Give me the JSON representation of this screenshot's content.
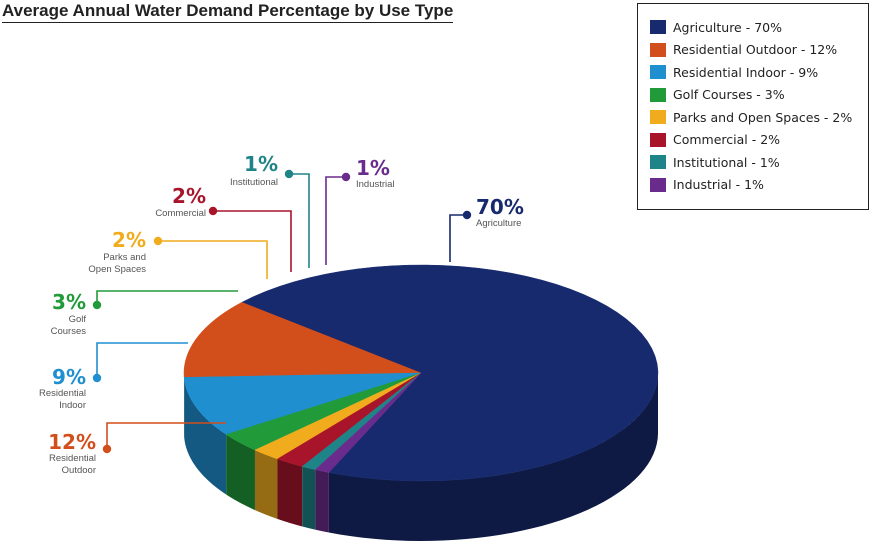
{
  "chart_data": {
    "type": "pie",
    "title": "Average Annual Water Demand Percentage by Use Type",
    "slices": [
      {
        "name": "Agriculture",
        "value": 70,
        "pct_label": "70%",
        "label_lines": [
          "Agriculture"
        ],
        "legend": "Agriculture - 70%",
        "color": "#172a6e"
      },
      {
        "name": "Residential Outdoor",
        "value": 12,
        "pct_label": "12%",
        "label_lines": [
          "Residential",
          "Outdoor"
        ],
        "legend": "Residential Outdoor - 12%",
        "color": "#d24f1c"
      },
      {
        "name": "Residential Indoor",
        "value": 9,
        "pct_label": "9%",
        "label_lines": [
          "Residential",
          "Indoor"
        ],
        "legend": "Residential Indoor - 9%",
        "color": "#1f8fd0"
      },
      {
        "name": "Golf Courses",
        "value": 3,
        "pct_label": "3%",
        "label_lines": [
          "Golf",
          "Courses"
        ],
        "legend": "Golf Courses - 3%",
        "color": "#219a3a"
      },
      {
        "name": "Parks and Open Spaces",
        "value": 2,
        "pct_label": "2%",
        "label_lines": [
          "Parks and",
          "Open Spaces"
        ],
        "legend": "Parks and Open Spaces - 2%",
        "color": "#f1ac1e"
      },
      {
        "name": "Commercial",
        "value": 2,
        "pct_label": "2%",
        "label_lines": [
          "Commercial"
        ],
        "legend": "Commercial - 2%",
        "color": "#a8152b"
      },
      {
        "name": "Institutional",
        "value": 1,
        "pct_label": "1%",
        "label_lines": [
          "Institutional"
        ],
        "legend": "Institutional - 1%",
        "color": "#1f8488"
      },
      {
        "name": "Industrial",
        "value": 1,
        "pct_label": "1%",
        "label_lines": [
          "Industrial"
        ],
        "legend": "Industrial - 1%",
        "color": "#6a2c8c"
      }
    ],
    "legend_position": "top-right",
    "style": "3d"
  }
}
